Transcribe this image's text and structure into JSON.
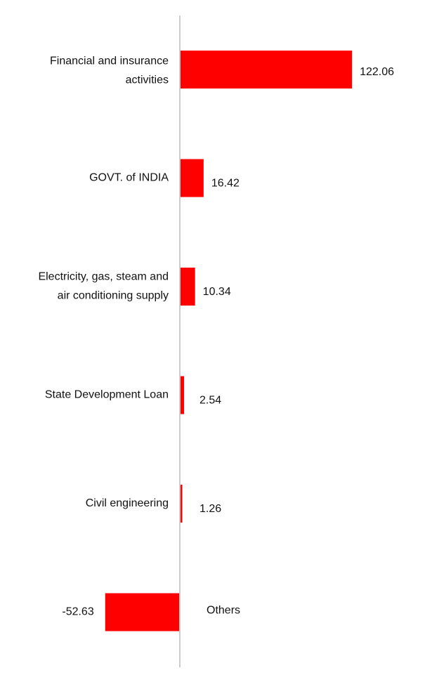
{
  "chart_data": {
    "type": "bar",
    "orientation": "horizontal",
    "categories": [
      "Financial and insurance activities",
      "GOVT. of INDIA",
      "Electricity, gas, steam and air conditioning supply",
      "State Development Loan",
      "Civil engineering",
      "Others"
    ],
    "category_lines": [
      [
        "Financial and insurance",
        "activities"
      ],
      [
        "GOVT. of INDIA"
      ],
      [
        "Electricity, gas, steam and",
        "air conditioning supply"
      ],
      [
        "State Development Loan"
      ],
      [
        "Civil engineering"
      ],
      [
        "Others"
      ]
    ],
    "values": [
      122.06,
      16.42,
      10.34,
      2.54,
      1.26,
      -52.63
    ],
    "value_labels": [
      "122.06",
      "16.42",
      "10.34",
      "2.54",
      "1.26",
      "-52.63"
    ],
    "title": "",
    "xlabel": "",
    "ylabel": "",
    "grid": false,
    "legend": "none",
    "bar_color": "#ff0000",
    "axis_color": "#cccccc"
  }
}
